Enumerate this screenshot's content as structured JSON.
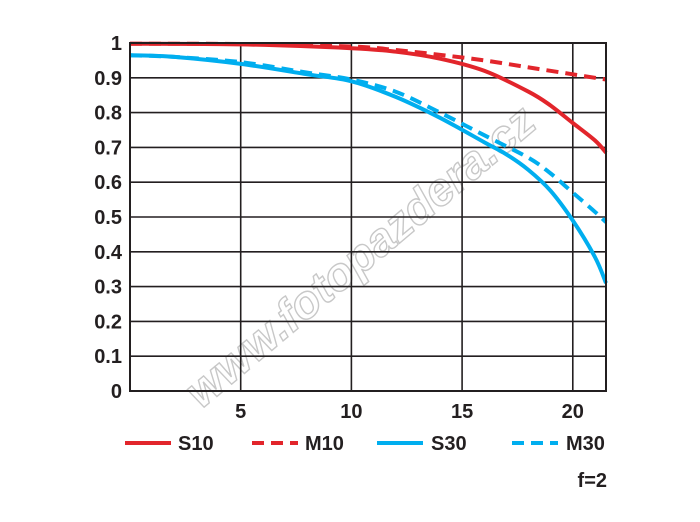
{
  "chart_data": {
    "type": "line",
    "title": "",
    "xlabel": "",
    "ylabel": "",
    "xlim": [
      0,
      21.5
    ],
    "ylim": [
      0,
      1
    ],
    "x_ticks": [
      5,
      10,
      15,
      20
    ],
    "y_ticks": [
      0,
      0.1,
      0.2,
      0.3,
      0.4,
      0.5,
      0.6,
      0.7,
      0.8,
      0.9,
      1
    ],
    "y_tick_labels": [
      "0",
      "0.1",
      "0.2",
      "0.3",
      "0.4",
      "0.5",
      "0.6",
      "0.7",
      "0.8",
      "0.9",
      "1"
    ],
    "x_tick_labels": [
      "5",
      "10",
      "15",
      "20"
    ],
    "grid": true,
    "legend_position": "bottom",
    "series": [
      {
        "name": "S10",
        "color": "#e2252b",
        "dash": "solid",
        "x": [
          0,
          5,
          10,
          12,
          14,
          16,
          18,
          19,
          20,
          21,
          21.5
        ],
        "y": [
          0.998,
          0.996,
          0.985,
          0.975,
          0.955,
          0.92,
          0.86,
          0.82,
          0.77,
          0.72,
          0.685
        ]
      },
      {
        "name": "M10",
        "color": "#e2252b",
        "dash": "dashed",
        "x": [
          0,
          5,
          10,
          12,
          14,
          16,
          18,
          20,
          21.5
        ],
        "y": [
          0.998,
          0.997,
          0.99,
          0.98,
          0.966,
          0.95,
          0.93,
          0.91,
          0.895
        ]
      },
      {
        "name": "S30",
        "color": "#00aeef",
        "dash": "solid",
        "x": [
          0,
          2,
          5,
          8,
          10,
          12,
          14,
          16,
          17,
          18,
          19,
          20,
          21,
          21.5
        ],
        "y": [
          0.965,
          0.96,
          0.94,
          0.91,
          0.89,
          0.845,
          0.785,
          0.715,
          0.68,
          0.635,
          0.575,
          0.49,
          0.385,
          0.31
        ]
      },
      {
        "name": "M30",
        "color": "#00aeef",
        "dash": "dashed",
        "x": [
          0,
          2,
          5,
          8,
          10,
          12,
          14,
          16,
          18,
          19,
          20,
          21,
          21.5
        ],
        "y": [
          0.965,
          0.96,
          0.945,
          0.915,
          0.895,
          0.86,
          0.8,
          0.735,
          0.67,
          0.625,
          0.57,
          0.515,
          0.485
        ]
      }
    ],
    "annotations": [
      "f=2"
    ],
    "watermark": "www.fotopazdera.cz"
  }
}
